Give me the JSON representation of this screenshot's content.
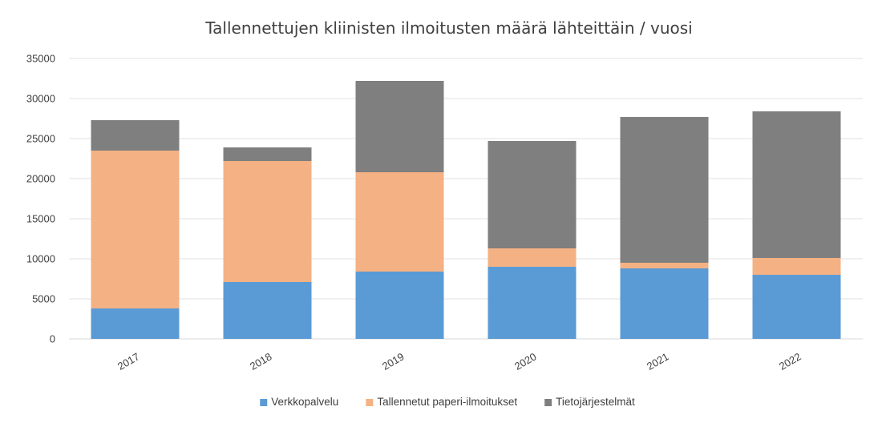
{
  "chart_data": {
    "type": "bar",
    "stacked": true,
    "title": "Tallennettujen kliinisten ilmoitusten määrä lähteittäin / vuosi",
    "xlabel": "",
    "ylabel": "",
    "categories": [
      "2017",
      "2018",
      "2019",
      "2020",
      "2021",
      "2022"
    ],
    "series": [
      {
        "name": "Verkkopalvelu",
        "color": "#5b9bd5",
        "values": [
          3800,
          7100,
          8400,
          9000,
          8800,
          8000
        ]
      },
      {
        "name": "Tallennetut paperi-ilmoitukset",
        "color": "#f4b183",
        "values": [
          19700,
          15100,
          12400,
          2300,
          700,
          2100
        ]
      },
      {
        "name": "Tietojärjestelmät",
        "color": "#7f7f7f",
        "values": [
          3800,
          1700,
          11400,
          13400,
          18200,
          18300
        ]
      }
    ],
    "ylim": [
      0,
      35000
    ],
    "yticks": [
      0,
      5000,
      10000,
      15000,
      20000,
      25000,
      30000,
      35000
    ],
    "ytick_labels": [
      "0",
      "5000",
      "10000",
      "15000",
      "20000",
      "25000",
      "30000",
      "35000"
    ],
    "grid": true,
    "legend_position": "bottom"
  }
}
